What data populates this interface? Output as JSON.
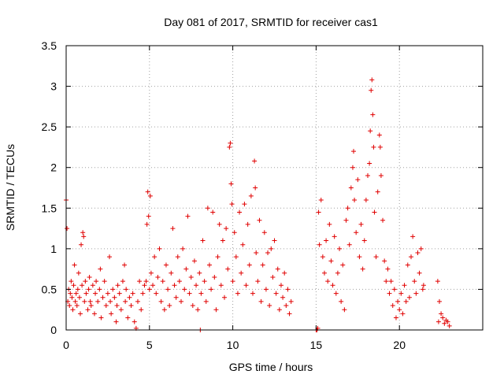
{
  "chart_data": {
    "type": "scatter",
    "title": "Day 081 of 2017, SRMTID for receiver cas1",
    "xlabel": "GPS time / hours",
    "ylabel": "SRMTID / TECUs",
    "xlim": [
      0,
      25
    ],
    "ylim": [
      0,
      3.5
    ],
    "xticks": [
      0,
      5,
      10,
      15,
      20
    ],
    "xtick_labels": [
      "0",
      "5",
      "10",
      "15",
      "20"
    ],
    "yticks": [
      0,
      0.5,
      1,
      1.5,
      2,
      2.5,
      3,
      3.5
    ],
    "ytick_labels": [
      "0",
      "0.5",
      "1",
      "1.5",
      "2",
      "2.5",
      "3",
      "3.5"
    ],
    "grid": true,
    "marker": "+",
    "color": "#e00000",
    "series": [
      {
        "name": "SRMTID",
        "points": [
          [
            0.0,
            1.6
          ],
          [
            0.05,
            1.25
          ],
          [
            0.1,
            0.35
          ],
          [
            0.15,
            0.5
          ],
          [
            0.2,
            0.3
          ],
          [
            0.25,
            0.45
          ],
          [
            0.3,
            0.6
          ],
          [
            0.35,
            0.4
          ],
          [
            0.4,
            0.25
          ],
          [
            0.45,
            0.55
          ],
          [
            0.5,
            0.8
          ],
          [
            0.55,
            0.35
          ],
          [
            0.6,
            0.45
          ],
          [
            0.65,
            0.3
          ],
          [
            0.7,
            0.5
          ],
          [
            0.75,
            0.7
          ],
          [
            0.8,
            0.4
          ],
          [
            0.85,
            0.2
          ],
          [
            0.9,
            1.05
          ],
          [
            0.95,
            0.55
          ],
          [
            1.0,
            1.2
          ],
          [
            1.05,
            1.15
          ],
          [
            1.1,
            0.35
          ],
          [
            1.15,
            0.6
          ],
          [
            1.2,
            0.45
          ],
          [
            1.3,
            0.25
          ],
          [
            1.35,
            0.5
          ],
          [
            1.4,
            0.65
          ],
          [
            1.45,
            0.35
          ],
          [
            1.5,
            0.3
          ],
          [
            1.6,
            0.55
          ],
          [
            1.7,
            0.2
          ],
          [
            1.75,
            0.45
          ],
          [
            1.8,
            0.6
          ],
          [
            1.9,
            0.35
          ],
          [
            2.0,
            0.5
          ],
          [
            2.05,
            0.75
          ],
          [
            2.1,
            0.15
          ],
          [
            2.2,
            0.4
          ],
          [
            2.3,
            0.6
          ],
          [
            2.4,
            0.3
          ],
          [
            2.5,
            0.45
          ],
          [
            2.6,
            0.9
          ],
          [
            2.65,
            0.35
          ],
          [
            2.7,
            0.2
          ],
          [
            2.8,
            0.5
          ],
          [
            2.9,
            0.4
          ],
          [
            3.0,
            0.1
          ],
          [
            3.05,
            0.3
          ],
          [
            3.1,
            0.55
          ],
          [
            3.2,
            0.45
          ],
          [
            3.3,
            0.25
          ],
          [
            3.4,
            0.6
          ],
          [
            3.5,
            0.8
          ],
          [
            3.55,
            0.35
          ],
          [
            3.6,
            0.5
          ],
          [
            3.7,
            0.15
          ],
          [
            3.8,
            0.4
          ],
          [
            3.9,
            0.3
          ],
          [
            4.0,
            0.45
          ],
          [
            4.1,
            0.1
          ],
          [
            4.2,
            0.02
          ],
          [
            4.3,
            0.35
          ],
          [
            4.4,
            0.6
          ],
          [
            4.5,
            0.25
          ],
          [
            4.6,
            0.45
          ],
          [
            4.7,
            0.55
          ],
          [
            4.8,
            0.6
          ],
          [
            4.85,
            1.3
          ],
          [
            4.9,
            1.7
          ],
          [
            4.95,
            1.4
          ],
          [
            5.0,
            0.5
          ],
          [
            5.05,
            1.65
          ],
          [
            5.1,
            0.7
          ],
          [
            5.2,
            0.55
          ],
          [
            5.3,
            0.9
          ],
          [
            5.4,
            0.45
          ],
          [
            5.5,
            0.65
          ],
          [
            5.6,
            1.0
          ],
          [
            5.7,
            0.35
          ],
          [
            5.8,
            0.6
          ],
          [
            5.9,
            0.25
          ],
          [
            6.0,
            0.8
          ],
          [
            6.1,
            0.5
          ],
          [
            6.2,
            0.3
          ],
          [
            6.3,
            0.7
          ],
          [
            6.4,
            1.25
          ],
          [
            6.5,
            0.55
          ],
          [
            6.6,
            0.4
          ],
          [
            6.7,
            0.9
          ],
          [
            6.8,
            0.6
          ],
          [
            6.9,
            0.35
          ],
          [
            7.0,
            1.0
          ],
          [
            7.1,
            0.5
          ],
          [
            7.2,
            0.75
          ],
          [
            7.3,
            1.4
          ],
          [
            7.4,
            0.45
          ],
          [
            7.5,
            0.65
          ],
          [
            7.6,
            0.3
          ],
          [
            7.7,
            0.85
          ],
          [
            7.8,
            0.55
          ],
          [
            7.9,
            0.25
          ],
          [
            8.0,
            0.7
          ],
          [
            8.05,
            0.0
          ],
          [
            8.1,
            0.45
          ],
          [
            8.2,
            1.1
          ],
          [
            8.3,
            0.6
          ],
          [
            8.4,
            0.35
          ],
          [
            8.5,
            1.5
          ],
          [
            8.6,
            0.8
          ],
          [
            8.7,
            0.5
          ],
          [
            8.8,
            1.45
          ],
          [
            8.9,
            0.65
          ],
          [
            9.0,
            0.25
          ],
          [
            9.1,
            0.9
          ],
          [
            9.2,
            1.3
          ],
          [
            9.3,
            0.55
          ],
          [
            9.4,
            1.1
          ],
          [
            9.5,
            0.4
          ],
          [
            9.6,
            1.25
          ],
          [
            9.7,
            0.75
          ],
          [
            9.8,
            2.25
          ],
          [
            9.85,
            2.3
          ],
          [
            9.9,
            1.8
          ],
          [
            9.95,
            1.55
          ],
          [
            10.0,
            0.6
          ],
          [
            10.1,
            1.2
          ],
          [
            10.2,
            0.9
          ],
          [
            10.3,
            0.45
          ],
          [
            10.4,
            1.45
          ],
          [
            10.5,
            0.7
          ],
          [
            10.6,
            1.05
          ],
          [
            10.7,
            1.55
          ],
          [
            10.8,
            0.55
          ],
          [
            10.9,
            1.3
          ],
          [
            11.0,
            0.8
          ],
          [
            11.1,
            1.65
          ],
          [
            11.2,
            0.45
          ],
          [
            11.3,
            2.08
          ],
          [
            11.35,
            1.75
          ],
          [
            11.4,
            0.95
          ],
          [
            11.5,
            0.6
          ],
          [
            11.6,
            1.35
          ],
          [
            11.7,
            0.35
          ],
          [
            11.8,
            0.8
          ],
          [
            11.9,
            1.2
          ],
          [
            12.0,
            0.5
          ],
          [
            12.1,
            0.95
          ],
          [
            12.2,
            0.3
          ],
          [
            12.3,
            1.0
          ],
          [
            12.4,
            0.65
          ],
          [
            12.5,
            1.1
          ],
          [
            12.6,
            0.45
          ],
          [
            12.7,
            0.75
          ],
          [
            12.8,
            0.25
          ],
          [
            12.9,
            0.55
          ],
          [
            13.0,
            0.4
          ],
          [
            13.1,
            0.7
          ],
          [
            13.2,
            0.3
          ],
          [
            13.3,
            0.5
          ],
          [
            13.4,
            0.2
          ],
          [
            13.5,
            0.35
          ],
          [
            15.0,
            0.0
          ],
          [
            15.05,
            0.0
          ],
          [
            15.1,
            0.02
          ],
          [
            15.15,
            1.45
          ],
          [
            15.2,
            1.05
          ],
          [
            15.3,
            1.6
          ],
          [
            15.4,
            0.9
          ],
          [
            15.5,
            0.7
          ],
          [
            15.6,
            1.1
          ],
          [
            15.7,
            0.6
          ],
          [
            15.8,
            1.3
          ],
          [
            15.9,
            0.85
          ],
          [
            16.0,
            0.55
          ],
          [
            16.1,
            1.15
          ],
          [
            16.2,
            0.45
          ],
          [
            16.3,
            0.7
          ],
          [
            16.4,
            1.0
          ],
          [
            16.5,
            0.35
          ],
          [
            16.6,
            0.8
          ],
          [
            16.7,
            0.25
          ],
          [
            16.8,
            1.35
          ],
          [
            16.9,
            1.5
          ],
          [
            17.0,
            1.05
          ],
          [
            17.1,
            1.75
          ],
          [
            17.2,
            2.0
          ],
          [
            17.25,
            2.2
          ],
          [
            17.3,
            1.6
          ],
          [
            17.4,
            1.2
          ],
          [
            17.5,
            1.85
          ],
          [
            17.6,
            0.9
          ],
          [
            17.7,
            1.3
          ],
          [
            17.8,
            0.75
          ],
          [
            17.9,
            1.1
          ],
          [
            18.0,
            1.6
          ],
          [
            18.1,
            1.9
          ],
          [
            18.2,
            2.05
          ],
          [
            18.25,
            2.45
          ],
          [
            18.3,
            2.95
          ],
          [
            18.35,
            3.08
          ],
          [
            18.4,
            2.65
          ],
          [
            18.45,
            2.25
          ],
          [
            18.5,
            1.45
          ],
          [
            18.6,
            0.9
          ],
          [
            18.7,
            1.7
          ],
          [
            18.8,
            2.4
          ],
          [
            18.85,
            2.25
          ],
          [
            18.9,
            1.9
          ],
          [
            19.0,
            1.35
          ],
          [
            19.1,
            0.85
          ],
          [
            19.2,
            0.6
          ],
          [
            19.3,
            0.75
          ],
          [
            19.4,
            0.45
          ],
          [
            19.5,
            0.6
          ],
          [
            19.6,
            0.3
          ],
          [
            19.7,
            0.5
          ],
          [
            19.8,
            0.15
          ],
          [
            19.9,
            0.35
          ],
          [
            20.0,
            0.25
          ],
          [
            20.1,
            0.45
          ],
          [
            20.2,
            0.2
          ],
          [
            20.3,
            0.55
          ],
          [
            20.4,
            0.35
          ],
          [
            20.5,
            0.8
          ],
          [
            20.6,
            0.4
          ],
          [
            20.7,
            0.9
          ],
          [
            20.8,
            1.15
          ],
          [
            20.9,
            0.6
          ],
          [
            21.0,
            0.45
          ],
          [
            21.1,
            0.95
          ],
          [
            21.2,
            0.7
          ],
          [
            21.3,
            1.0
          ],
          [
            21.4,
            0.5
          ],
          [
            21.45,
            0.55
          ],
          [
            22.3,
            0.6
          ],
          [
            22.35,
            0.1
          ],
          [
            22.4,
            0.35
          ],
          [
            22.5,
            0.2
          ],
          [
            22.6,
            0.15
          ],
          [
            22.7,
            0.08
          ],
          [
            22.8,
            0.12
          ],
          [
            22.9,
            0.1
          ],
          [
            23.0,
            0.05
          ]
        ]
      }
    ]
  }
}
